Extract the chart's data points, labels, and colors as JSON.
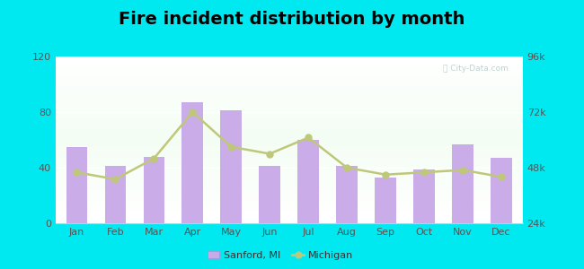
{
  "title": "Fire incident distribution by month",
  "months": [
    "Jan",
    "Feb",
    "Mar",
    "Apr",
    "May",
    "Jun",
    "Jul",
    "Aug",
    "Sep",
    "Oct",
    "Nov",
    "Dec"
  ],
  "sanford_values": [
    55,
    41,
    48,
    87,
    81,
    41,
    60,
    41,
    33,
    39,
    57,
    47
  ],
  "michigan_values": [
    46000,
    43000,
    52000,
    72000,
    57000,
    54000,
    61000,
    48000,
    45000,
    46000,
    47000,
    44000
  ],
  "bar_color": "#c9aae8",
  "line_color": "#bec878",
  "bar_edge_color": "#b090d0",
  "outer_background": "#00e8f0",
  "plot_bg_color": "#e8f5e0",
  "ylim_left": [
    0,
    120
  ],
  "ylim_right": [
    24000,
    96000
  ],
  "yticks_left": [
    0,
    40,
    80,
    120
  ],
  "yticks_right": [
    24000,
    48000,
    72000,
    96000
  ],
  "ytick_labels_right": [
    "24k",
    "48k",
    "72k",
    "96k"
  ],
  "title_fontsize": 14,
  "legend_label_sanford": "Sanford, MI",
  "legend_label_michigan": "Michigan"
}
